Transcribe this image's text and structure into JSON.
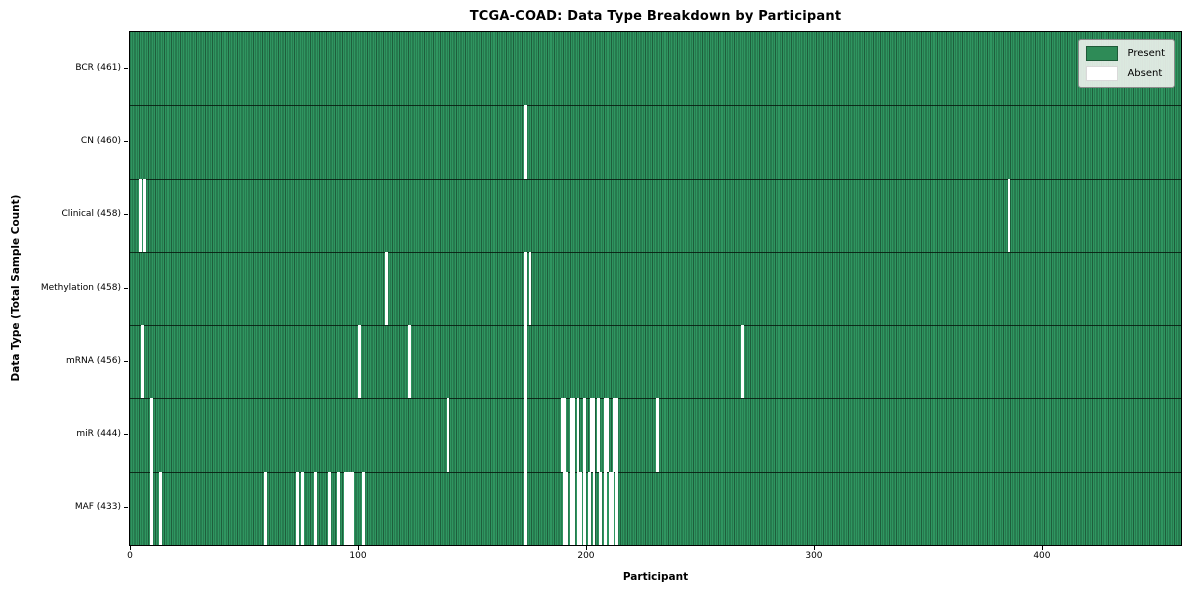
{
  "chart_data": {
    "type": "heatmap",
    "title": "TCGA-COAD: Data Type Breakdown by Participant",
    "xlabel": "Participant",
    "ylabel": "Data Type (Total Sample Count)",
    "x_ticks": [
      0,
      100,
      200,
      300,
      400
    ],
    "x_range": [
      0,
      461
    ],
    "n_participants": 461,
    "grid": false,
    "legend_position": "upper right",
    "legend": [
      {
        "label": "Present",
        "color": "#2e8b57"
      },
      {
        "label": "Absent",
        "color": "#ffffff"
      }
    ],
    "colors": {
      "present": "#2f9560",
      "present_edge": "#1e5e3c",
      "absent": "#ffffff",
      "row_separator": "rgba(5,20,10,0.8)"
    },
    "rows": [
      {
        "label": "BCR (461)",
        "data_type": "BCR",
        "present_count": 461,
        "absent_participants": []
      },
      {
        "label": "CN (460)",
        "data_type": "CN",
        "present_count": 460,
        "absent_participants": [
          173
        ]
      },
      {
        "label": "Clinical (458)",
        "data_type": "Clinical",
        "present_count": 458,
        "absent_participants": [
          4,
          6,
          385
        ]
      },
      {
        "label": "Methylation (458)",
        "data_type": "Methylation",
        "present_count": 458,
        "absent_participants": [
          112,
          173,
          175
        ]
      },
      {
        "label": "mRNA (456)",
        "data_type": "mRNA",
        "present_count": 456,
        "absent_participants": [
          5,
          100,
          122,
          173,
          268
        ]
      },
      {
        "label": "miR (444)",
        "data_type": "miR",
        "present_count": 444,
        "absent_participants": [
          9,
          139,
          173,
          189,
          190,
          193,
          194,
          196,
          199,
          202,
          203,
          205,
          208,
          209,
          212,
          213,
          231
        ]
      },
      {
        "label": "MAF (433)",
        "data_type": "MAF",
        "present_count": 433,
        "absent_participants": [
          9,
          13,
          59,
          73,
          75,
          81,
          87,
          91,
          94,
          95,
          96,
          97,
          102,
          173,
          190,
          191,
          193,
          194,
          196,
          197,
          199,
          201,
          203,
          206,
          208,
          210,
          211,
          213
        ]
      }
    ]
  }
}
